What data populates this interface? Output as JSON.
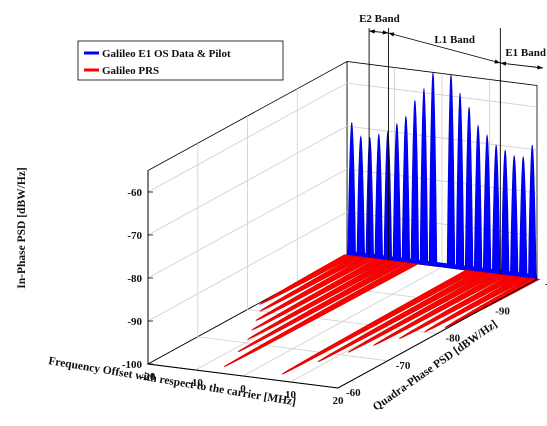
{
  "chart_data": {
    "type": "area",
    "title": "",
    "legend_position": "top-left",
    "legend": [
      {
        "name": "Galileo E1 OS Data & Pilot",
        "color": "#0000ff"
      },
      {
        "name": "Galileo PRS",
        "color": "#ff0000"
      }
    ],
    "x_axis": {
      "label": "Frequency Offset with respect to the carrier [MHz]",
      "ticks": [
        "-20",
        "-10",
        "0",
        "10",
        "20"
      ],
      "range": [
        -20,
        20
      ]
    },
    "z_axis": {
      "label": "In-Phase PSD [dBW/Hz]",
      "ticks": [
        "-100",
        "-90",
        "-80",
        "-70",
        "-60"
      ],
      "range": [
        -100,
        -55
      ]
    },
    "y_axis": {
      "label": "Quadra-Phase PSD [dBW/Hz]",
      "ticks": [
        "-60",
        "-70",
        "-80",
        "-90",
        "-100"
      ],
      "range": [
        -100,
        -60
      ]
    },
    "bands": [
      {
        "name": "E2 Band",
        "start_mhz": -15.35,
        "end_mhz": -11.28
      },
      {
        "name": "L1 Band",
        "start_mhz": -11.28,
        "end_mhz": 12.28
      },
      {
        "name": "E1 Band",
        "start_mhz": 12.28,
        "end_mhz": 20
      }
    ],
    "series": [
      {
        "name": "Galileo E1 OS Data & Pilot",
        "plane": "in-phase",
        "lobes": [
          {
            "x": -19.0,
            "peak": -69
          },
          {
            "x": -17.1,
            "peak": -72
          },
          {
            "x": -15.2,
            "peak": -72
          },
          {
            "x": -13.3,
            "peak": -71
          },
          {
            "x": -11.4,
            "peak": -70
          },
          {
            "x": -9.5,
            "peak": -68
          },
          {
            "x": -7.6,
            "peak": -66
          },
          {
            "x": -5.7,
            "peak": -62
          },
          {
            "x": -3.8,
            "peak": -59
          },
          {
            "x": -1.9,
            "peak": -55
          },
          {
            "x": 1.9,
            "peak": -55
          },
          {
            "x": 3.8,
            "peak": -59
          },
          {
            "x": 5.7,
            "peak": -62
          },
          {
            "x": 7.6,
            "peak": -66
          },
          {
            "x": 9.5,
            "peak": -68
          },
          {
            "x": 11.4,
            "peak": -70
          },
          {
            "x": 13.3,
            "peak": -71
          },
          {
            "x": 15.2,
            "peak": -72
          },
          {
            "x": 17.1,
            "peak": -72
          },
          {
            "x": 19.0,
            "peak": -69
          }
        ]
      },
      {
        "name": "Galileo PRS",
        "plane": "quadra-phase",
        "lobes": [
          {
            "x": -19.5,
            "peak": -82
          },
          {
            "x": -17.3,
            "peak": -80
          },
          {
            "x": -15.1,
            "peak": -77
          },
          {
            "x": -12.8,
            "peak": -74
          },
          {
            "x": -10.6,
            "peak": -71
          },
          {
            "x": -8.4,
            "peak": -67
          },
          {
            "x": -6.1,
            "peak": -62
          },
          {
            "x": 6.1,
            "peak": -62
          },
          {
            "x": 8.4,
            "peak": -67
          },
          {
            "x": 10.6,
            "peak": -71
          },
          {
            "x": 12.8,
            "peak": -74
          },
          {
            "x": 15.1,
            "peak": -77
          },
          {
            "x": 17.3,
            "peak": -80
          },
          {
            "x": 19.5,
            "peak": -82
          }
        ]
      }
    ]
  }
}
